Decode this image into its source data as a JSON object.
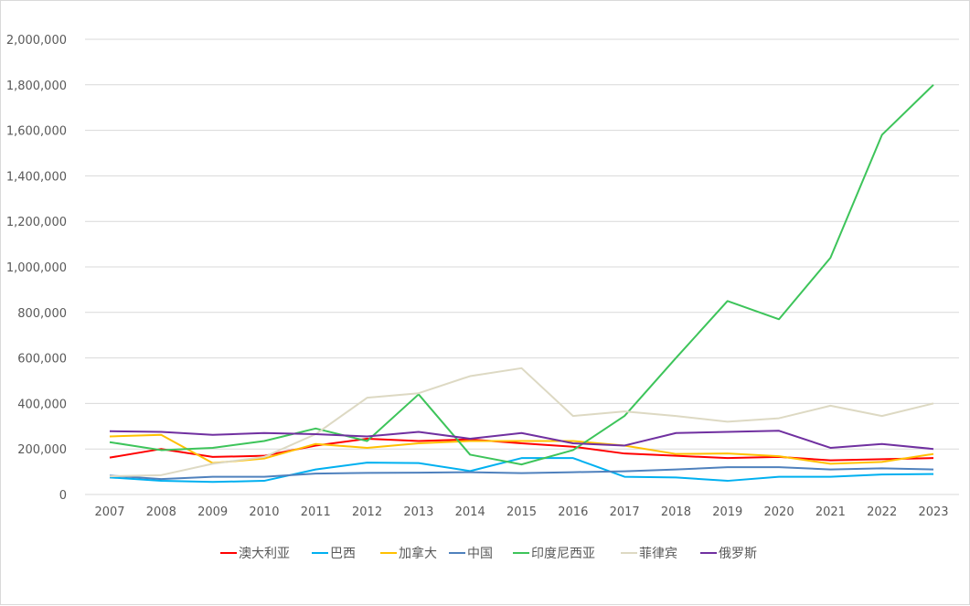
{
  "chart_data": {
    "type": "line",
    "title": "",
    "xlabel": "",
    "ylabel": "",
    "ylim": [
      0,
      2000000
    ],
    "ytick_step": 200000,
    "yticks": [
      "0",
      "200,000",
      "400,000",
      "600,000",
      "800,000",
      "1,000,000",
      "1,200,000",
      "1,400,000",
      "1,600,000",
      "1,800,000",
      "2,000,000"
    ],
    "grid": true,
    "legend_position": "bottom",
    "categories": [
      "2007",
      "2008",
      "2009",
      "2010",
      "2011",
      "2012",
      "2013",
      "2014",
      "2015",
      "2016",
      "2017",
      "2018",
      "2019",
      "2020",
      "2021",
      "2022",
      "2023"
    ],
    "series": [
      {
        "name": "澳大利亚",
        "color": "#ff0000",
        "values": [
          162000,
          200000,
          165000,
          170000,
          215000,
          245000,
          235000,
          242000,
          225000,
          210000,
          180000,
          170000,
          160000,
          165000,
          150000,
          155000,
          160000
        ]
      },
      {
        "name": "巴西",
        "color": "#00b0f0",
        "values": [
          75000,
          60000,
          55000,
          60000,
          110000,
          140000,
          138000,
          103000,
          160000,
          160000,
          78000,
          75000,
          60000,
          78000,
          78000,
          88000,
          90000
        ]
      },
      {
        "name": "加拿大",
        "color": "#ffc000",
        "values": [
          255000,
          262000,
          138000,
          158000,
          222000,
          205000,
          225000,
          235000,
          235000,
          235000,
          215000,
          178000,
          180000,
          168000,
          135000,
          143000,
          178000
        ]
      },
      {
        "name": "中国",
        "color": "#4f81bd",
        "values": [
          83000,
          68000,
          78000,
          78000,
          92000,
          95000,
          96000,
          98000,
          94000,
          98000,
          102000,
          110000,
          120000,
          120000,
          110000,
          115000,
          110000
        ]
      },
      {
        "name": "印度尼西亚",
        "color": "#3dc45a",
        "values": [
          230000,
          195000,
          205000,
          235000,
          290000,
          235000,
          440000,
          175000,
          132000,
          195000,
          345000,
          600000,
          850000,
          770000,
          1040000,
          1580000,
          1800000
        ]
      },
      {
        "name": "菲律宾",
        "color": "#ddd9c3",
        "values": [
          80000,
          85000,
          135000,
          165000,
          265000,
          425000,
          445000,
          520000,
          555000,
          345000,
          365000,
          345000,
          320000,
          335000,
          390000,
          345000,
          400000
        ]
      },
      {
        "name": "俄罗斯",
        "color": "#7030a0",
        "values": [
          278000,
          275000,
          262000,
          270000,
          265000,
          255000,
          275000,
          245000,
          270000,
          225000,
          215000,
          270000,
          275000,
          280000,
          205000,
          222000,
          200000
        ]
      }
    ]
  }
}
